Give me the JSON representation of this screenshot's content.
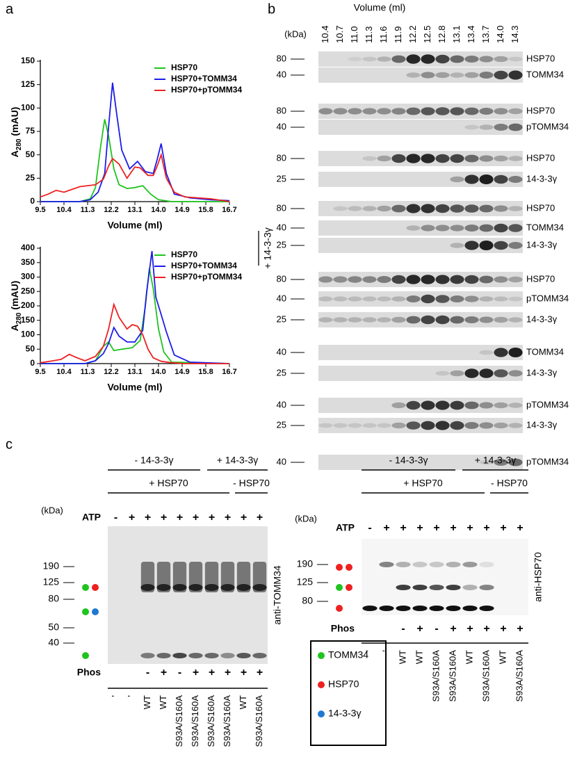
{
  "panel_labels": [
    "a",
    "b",
    "c"
  ],
  "chart_data": [
    {
      "type": "line",
      "x_label": "Volume (ml)",
      "y_label": [
        "A",
        "280",
        " (mAU)"
      ],
      "xlim": [
        9.5,
        16.7
      ],
      "xticks": [
        9.5,
        10.4,
        11.3,
        12.2,
        13.1,
        {
          "value": 14,
          "label": "14.0"
        },
        14.9,
        15.8,
        16.7
      ],
      "ylim": [
        0,
        150
      ],
      "yticks": [
        0,
        25,
        50,
        75,
        100,
        125,
        150
      ],
      "legend": "upper right",
      "series": [
        {
          "name": "HSP70",
          "color": "#1fc41f",
          "x": [
            9.5,
            11.0,
            11.4,
            11.6,
            11.8,
            11.95,
            12.1,
            12.3,
            12.5,
            12.8,
            13.1,
            13.4,
            13.7,
            14.0,
            14.5,
            16.7
          ],
          "values": [
            0,
            0,
            3,
            15,
            60,
            88,
            70,
            35,
            18,
            14,
            15,
            17,
            8,
            2,
            0,
            0
          ]
        },
        {
          "name": "HSP70+TOMM34",
          "color": "#1c1ce8",
          "x": [
            9.5,
            11.0,
            11.4,
            11.7,
            11.95,
            12.1,
            12.25,
            12.4,
            12.6,
            12.9,
            13.2,
            13.5,
            13.8,
            13.95,
            14.1,
            14.3,
            14.6,
            15.2,
            16.0,
            16.7
          ],
          "values": [
            0,
            0,
            2,
            10,
            30,
            80,
            127,
            95,
            55,
            35,
            43,
            32,
            30,
            45,
            62,
            30,
            8,
            4,
            2,
            1
          ]
        },
        {
          "name": "HSP70+pTOMM34",
          "color": "#ee2020",
          "x": [
            9.5,
            9.8,
            10.1,
            10.4,
            10.7,
            11.0,
            11.3,
            11.6,
            11.9,
            12.1,
            12.25,
            12.5,
            12.8,
            13.1,
            13.3,
            13.6,
            13.8,
            13.95,
            14.1,
            14.3,
            14.6,
            15.0,
            16.0,
            16.7
          ],
          "values": [
            5,
            8,
            12,
            10,
            13,
            16,
            17,
            18,
            24,
            38,
            46,
            40,
            25,
            37,
            36,
            28,
            28,
            38,
            50,
            25,
            10,
            5,
            3,
            0
          ]
        }
      ]
    },
    {
      "type": "line",
      "x_label": "Volume (ml)",
      "y_label": [
        "A",
        "280",
        " (mAU)"
      ],
      "xlim": [
        9.5,
        16.7
      ],
      "xticks": [
        9.5,
        10.4,
        11.3,
        12.2,
        13.1,
        {
          "value": 14,
          "label": "14.0"
        },
        14.9,
        15.8,
        16.7
      ],
      "ylim": [
        0,
        400
      ],
      "yticks": [
        0,
        50,
        100,
        150,
        200,
        250,
        300,
        350,
        400
      ],
      "legend": "upper right",
      "side_label": "+ 14-3-3γ",
      "series": [
        {
          "name": "HSP70",
          "color": "#1fc41f",
          "x": [
            9.5,
            11.2,
            11.6,
            11.9,
            12.1,
            12.3,
            12.6,
            13.0,
            13.3,
            13.5,
            13.65,
            13.8,
            14.0,
            14.2,
            14.5,
            16.7
          ],
          "values": [
            0,
            0,
            10,
            60,
            75,
            45,
            50,
            55,
            80,
            200,
            330,
            260,
            120,
            40,
            5,
            0
          ]
        },
        {
          "name": "HSP70+TOMM34",
          "color": "#1c1ce8",
          "x": [
            9.5,
            11.2,
            11.6,
            11.9,
            12.1,
            12.3,
            12.5,
            12.8,
            13.1,
            13.4,
            13.55,
            13.75,
            13.9,
            14.1,
            14.3,
            14.6,
            15.2,
            16.7
          ],
          "values": [
            0,
            0,
            10,
            35,
            70,
            125,
            95,
            75,
            75,
            115,
            250,
            390,
            230,
            170,
            110,
            30,
            5,
            0
          ]
        },
        {
          "name": "HSP70+pTOMM34",
          "color": "#ee2020",
          "x": [
            9.5,
            10.0,
            10.3,
            10.6,
            10.9,
            11.2,
            11.6,
            11.9,
            12.1,
            12.3,
            12.5,
            12.8,
            13.0,
            13.2,
            13.4,
            13.6,
            13.8,
            14.1,
            14.5,
            15.0,
            16.7
          ],
          "values": [
            3,
            10,
            15,
            32,
            20,
            10,
            25,
            60,
            120,
            205,
            160,
            120,
            135,
            130,
            100,
            50,
            20,
            8,
            3,
            0,
            0
          ]
        }
      ]
    }
  ],
  "panel_b": {
    "x_label": "Volume (ml)",
    "kda_header": "(kDa)",
    "volumes": [
      "10.4",
      "10.7",
      "11.0",
      "11.3",
      "11.6",
      "11.9",
      "12.2",
      "12.5",
      "12.8",
      "13.1",
      "13.4",
      "13.7",
      "14.0",
      "14.3"
    ],
    "gels": [
      {
        "rows": [
          {
            "marker": 80,
            "label": "HSP70"
          },
          {
            "marker": 40,
            "label": "TOMM34"
          }
        ]
      },
      {
        "rows": [
          {
            "marker": 80,
            "label": "HSP70"
          },
          {
            "marker": 40,
            "label": "pTOMM34"
          }
        ]
      },
      {
        "rows": [
          {
            "marker": 80,
            "label": "HSP70"
          },
          {
            "marker": 25,
            "label": "14-3-3γ"
          }
        ]
      },
      {
        "rows": [
          {
            "marker": 80,
            "label": "HSP70"
          },
          {
            "marker": 40,
            "label": "TOMM34"
          },
          {
            "marker": 25,
            "label": "14-3-3γ"
          }
        ]
      },
      {
        "rows": [
          {
            "marker": 80,
            "label": "HSP70"
          },
          {
            "marker": 40,
            "label": "pTOMM34"
          },
          {
            "marker": 25,
            "label": "14-3-3γ"
          }
        ]
      },
      {
        "rows": [
          {
            "marker": 40,
            "label": "TOMM34"
          },
          {
            "marker": 25,
            "label": "14-3-3γ"
          }
        ]
      },
      {
        "rows": [
          {
            "marker": 40,
            "label": "pTOMM34"
          },
          {
            "marker": 25,
            "label": "14-3-3γ"
          }
        ]
      },
      {
        "rows": [
          {
            "marker": 40,
            "label": "pTOMM34"
          }
        ]
      }
    ]
  },
  "panel_c": {
    "blots": [
      {
        "group_top": [
          "- 14-3-3γ",
          "+ 14-3-3γ"
        ],
        "group_mid": [
          "+ HSP70",
          "- HSP70"
        ],
        "kda_header": "(kDa)",
        "atp_label": "ATP",
        "atp": [
          "-",
          "+",
          "+",
          "+",
          "+",
          "+",
          "+",
          "+",
          "+",
          "+"
        ],
        "markers": [
          190,
          125,
          80,
          50,
          40
        ],
        "antibody": "anti-TOMM34",
        "phos_label": "Phos",
        "phos": [
          null,
          null,
          "-",
          "+",
          "-",
          "+",
          "+",
          "+",
          "+",
          "+"
        ],
        "lanes": [
          "'",
          "'",
          "WT",
          "WT",
          "S93A/S160A",
          "S93A/S160A",
          "S93A/S160A",
          "S93A/S160A",
          "WT",
          "S93A/S160A"
        ]
      },
      {
        "group_top": [
          "- 14-3-3γ",
          "+ 14-3-3γ"
        ],
        "group_mid": [
          "+ HSP70",
          "- HSP70"
        ],
        "kda_header": "(kDa)",
        "atp_label": "ATP",
        "atp": [
          "-",
          "+",
          "+",
          "+",
          "+",
          "+",
          "+",
          "+",
          "+",
          "+"
        ],
        "markers": [
          190,
          125,
          80
        ],
        "antibody": "anti-HSP70",
        "phos_label": "Phos",
        "phos": [
          null,
          null,
          "-",
          "+",
          "-",
          "+",
          "+",
          "+",
          "+",
          "+"
        ],
        "lanes": [
          "'",
          "'",
          "WT",
          "WT",
          "S93A/S160A",
          "S93A/S160A",
          "WT",
          "S93A/S160A",
          "WT",
          "S93A/S160A"
        ]
      }
    ],
    "legend": [
      {
        "name": "TOMM34",
        "color": "#1fc41f"
      },
      {
        "name": "HSP70",
        "color": "#ee2020"
      },
      {
        "name": "14-3-3γ",
        "color": "#1f78d0"
      }
    ]
  }
}
